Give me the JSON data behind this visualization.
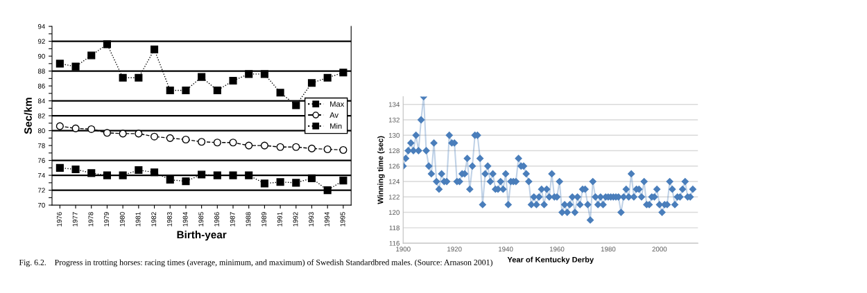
{
  "chart_data": [
    {
      "type": "line",
      "ylabel": "Sec/km",
      "xlabel": "Birth-year",
      "categories": [
        "1976",
        "1977",
        "1978",
        "1979",
        "1980",
        "1981",
        "1982",
        "1983",
        "1984",
        "1985",
        "1986",
        "1987",
        "1988",
        "1989",
        "1991",
        "1992",
        "1993",
        "1994",
        "1995"
      ],
      "series": [
        {
          "name": "Max",
          "color": "#000000",
          "marker": "square",
          "line_style": "dotted",
          "values": [
            89,
            88.6,
            90.1,
            91.6,
            87.1,
            87.1,
            90.9,
            85.4,
            85.4,
            87.2,
            85.4,
            86.7,
            87.6,
            87.6,
            85.1,
            83.4,
            86.4,
            87.1,
            87.8
          ]
        },
        {
          "name": "Av",
          "color": "#000000",
          "marker": "circle",
          "line_style": "dashed",
          "values": [
            80.6,
            80.3,
            80.2,
            79.7,
            79.6,
            79.6,
            79.2,
            79.0,
            78.8,
            78.5,
            78.4,
            78.4,
            78.0,
            78.0,
            77.8,
            77.8,
            77.6,
            77.5,
            77.4
          ]
        },
        {
          "name": "Min",
          "color": "#000000",
          "marker": "square",
          "line_style": "dotted",
          "values": [
            75,
            74.8,
            74.3,
            74,
            74,
            74.7,
            74.4,
            73.4,
            73.2,
            74.1,
            74,
            74,
            74,
            72.9,
            73.1,
            73,
            73.6,
            72,
            73.3
          ]
        }
      ],
      "ylim": [
        70,
        94
      ],
      "yticks": [
        70,
        {
          "value": 71,
          "label": null
        },
        72,
        {
          "value": 73,
          "label": null
        },
        74,
        {
          "value": 75,
          "label": null
        },
        76,
        {
          "value": 77,
          "label": null
        },
        78,
        {
          "value": 79,
          "label": null
        },
        80,
        {
          "value": 81,
          "label": null
        },
        82,
        {
          "value": 83,
          "label": null
        },
        84,
        {
          "value": 85,
          "label": null
        },
        86,
        {
          "value": 87,
          "label": null
        },
        88,
        {
          "value": 89,
          "label": null
        },
        90,
        {
          "value": 91,
          "label": null
        },
        92,
        {
          "value": 93,
          "label": null
        },
        94
      ],
      "ref_lines": [
        {
          "axis": "y",
          "value": 92
        },
        {
          "axis": "y",
          "value": 88
        },
        {
          "axis": "y",
          "value": 84
        },
        {
          "axis": "y",
          "value": 82
        },
        {
          "axis": "y",
          "value": 80
        },
        {
          "axis": "y",
          "value": 76
        },
        {
          "axis": "y",
          "value": 74
        },
        {
          "axis": "y",
          "value": 72
        }
      ],
      "legend": "right",
      "annotations": [
        "Fig. 6.2.    Progress in trotting horses: racing times (average, minimum, and maximum) of Swedish Standardbred males. (Source: Arnason 2001)"
      ]
    },
    {
      "type": "line",
      "xlabel": "Year of Kentucky Derby",
      "ylabel": "Winning time (sec)",
      "series": [
        {
          "color": "#4a7ebb",
          "marker": "diamond",
          "x": [
            1900,
            1901,
            1902,
            1903,
            1904,
            1905,
            1906,
            1907,
            1908,
            1909,
            1910,
            1911,
            1912,
            1913,
            1914,
            1915,
            1916,
            1917,
            1918,
            1919,
            1920,
            1921,
            1922,
            1923,
            1924,
            1925,
            1926,
            1927,
            1928,
            1929,
            1930,
            1931,
            1932,
            1933,
            1934,
            1935,
            1936,
            1937,
            1938,
            1939,
            1940,
            1941,
            1942,
            1943,
            1944,
            1945,
            1946,
            1947,
            1948,
            1949,
            1950,
            1951,
            1952,
            1953,
            1954,
            1955,
            1956,
            1957,
            1958,
            1959,
            1960,
            1961,
            1962,
            1963,
            1964,
            1965,
            1966,
            1967,
            1968,
            1969,
            1970,
            1971,
            1972,
            1973,
            1974,
            1975,
            1976,
            1977,
            1978,
            1979,
            1980,
            1981,
            1982,
            1983,
            1984,
            1985,
            1986,
            1987,
            1988,
            1989,
            1990,
            1991,
            1992,
            1993,
            1994,
            1995,
            1996,
            1997,
            1998,
            1999,
            2000,
            2001,
            2002,
            2003,
            2004,
            2005,
            2006,
            2007,
            2008,
            2009,
            2010,
            2011,
            2012,
            2013
          ],
          "values": [
            126,
            127,
            128,
            129,
            128,
            130,
            128,
            132,
            135,
            128,
            126,
            125,
            129,
            124,
            123,
            125,
            124,
            124,
            130,
            129,
            129,
            124,
            124,
            125,
            125,
            127,
            123,
            126,
            130,
            130,
            127,
            121,
            125,
            126,
            124,
            125,
            123,
            123,
            124,
            123,
            125,
            121,
            124,
            124,
            124,
            127,
            126,
            126,
            125,
            124,
            121,
            122,
            121,
            122,
            123,
            121,
            123,
            122,
            125,
            122,
            122,
            124,
            120,
            121,
            120,
            121,
            122,
            120,
            122,
            121,
            123,
            123,
            121,
            119,
            124,
            122,
            121,
            122,
            121,
            122,
            122,
            122,
            122,
            122,
            122,
            120,
            122,
            123,
            122,
            125,
            122,
            123,
            123,
            122,
            124,
            121,
            121,
            122,
            122,
            123,
            121,
            120,
            121,
            121,
            124,
            123,
            121,
            122,
            122,
            123,
            124,
            122,
            122,
            123
          ]
        }
      ],
      "xlim": [
        1900,
        2015
      ],
      "xticks": [
        1900,
        1920,
        1940,
        1960,
        1980,
        2000
      ],
      "ylim": [
        116,
        135
      ],
      "yticks": [
        116,
        118,
        120,
        122,
        124,
        126,
        128,
        130,
        132,
        134
      ],
      "grid": "y"
    }
  ]
}
